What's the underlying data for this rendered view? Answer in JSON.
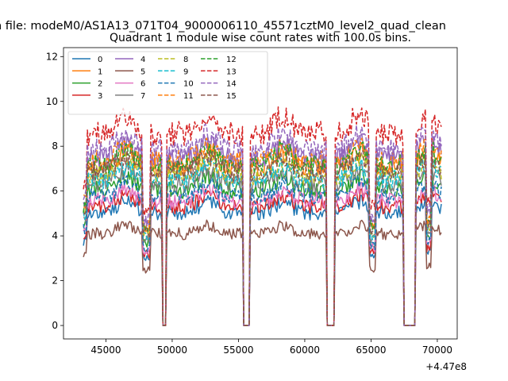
{
  "figure": {
    "suptitle": "n file: modeM0/AS1A13_071T04_9000006110_45571cztM0_level2_quad_clean"
  },
  "chart_data": {
    "type": "line",
    "title": "Quadrant 1 module wise count rates with 100.0s bins.",
    "xlabel": "",
    "ylabel": "",
    "x_offset_label": "+4.47e8",
    "xlim": [
      41800,
      71500
    ],
    "ylim": [
      -0.6,
      12.4
    ],
    "x_ticks": [
      45000,
      50000,
      55000,
      60000,
      65000,
      70000
    ],
    "x_tick_labels": [
      "45000",
      "50000",
      "55000",
      "60000",
      "65000",
      "70000"
    ],
    "y_ticks": [
      0,
      2,
      4,
      6,
      8,
      10,
      12
    ],
    "y_tick_labels": [
      "0",
      "2",
      "4",
      "6",
      "8",
      "10",
      "12"
    ],
    "grid": false,
    "legend_position": "top-left",
    "x_range": [
      43300,
      70300
    ],
    "x_step": 100,
    "gaps": [
      [
        49250,
        49550
      ],
      [
        55350,
        55850
      ],
      [
        61650,
        62250
      ],
      [
        67450,
        68350
      ]
    ],
    "dips": [
      [
        47800,
        48300
      ],
      [
        64900,
        65300
      ],
      [
        69200,
        69500
      ]
    ],
    "series": [
      {
        "name": "0",
        "color": "#1f77b4",
        "dash": "solid",
        "level": 5.4
      },
      {
        "name": "1",
        "color": "#ff7f0e",
        "dash": "solid",
        "level": 7.6
      },
      {
        "name": "2",
        "color": "#2ca02c",
        "dash": "solid",
        "level": 6.5
      },
      {
        "name": "3",
        "color": "#d62728",
        "dash": "solid",
        "level": 5.7
      },
      {
        "name": "4",
        "color": "#9467bd",
        "dash": "solid",
        "level": 8.0
      },
      {
        "name": "5",
        "color": "#8c564b",
        "dash": "solid",
        "level": 4.4
      },
      {
        "name": "6",
        "color": "#e377c2",
        "dash": "solid",
        "level": 6.0
      },
      {
        "name": "7",
        "color": "#7f7f7f",
        "dash": "solid",
        "level": 6.8
      },
      {
        "name": "8",
        "color": "#bcbd22",
        "dash": "dashed",
        "level": 7.2
      },
      {
        "name": "9",
        "color": "#17becf",
        "dash": "dashed",
        "level": 7.0
      },
      {
        "name": "10",
        "color": "#1f77b4",
        "dash": "dashed",
        "level": 6.2
      },
      {
        "name": "11",
        "color": "#ff7f0e",
        "dash": "dashed",
        "level": 7.9
      },
      {
        "name": "12",
        "color": "#2ca02c",
        "dash": "dashed",
        "level": 7.7
      },
      {
        "name": "13",
        "color": "#d62728",
        "dash": "dashed",
        "level": 9.2
      },
      {
        "name": "14",
        "color": "#9467bd",
        "dash": "dashed",
        "level": 8.4
      },
      {
        "name": "15",
        "color": "#8c564b",
        "dash": "dashed",
        "level": 7.4
      }
    ]
  }
}
